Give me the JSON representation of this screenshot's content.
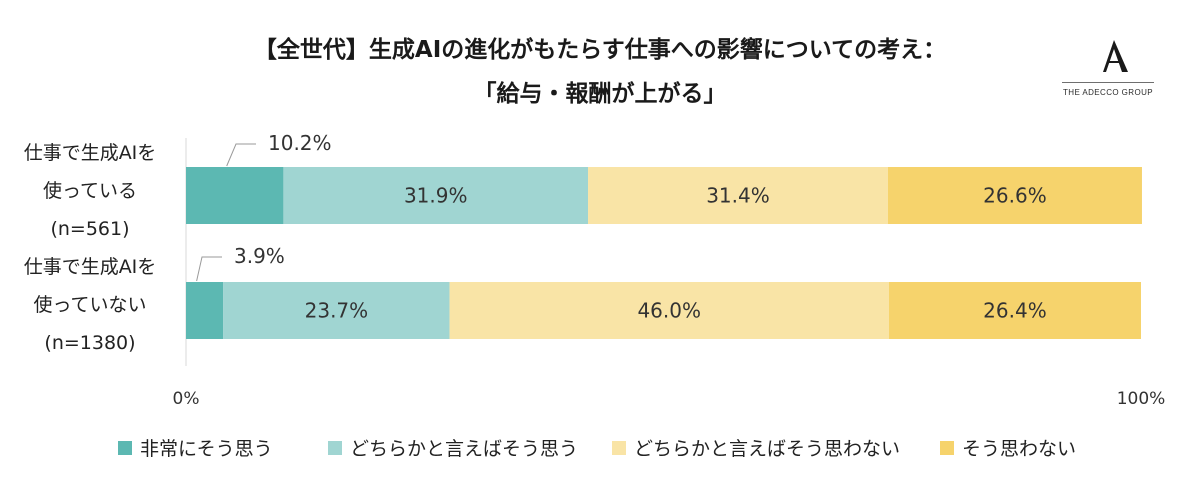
{
  "title": {
    "line1": "【全世代】生成AIの進化がもたらす仕事への影響についての考え：",
    "line2": "「給与・報酬が上がる」"
  },
  "logo": {
    "text": "THE ADECCO GROUP",
    "mark": "A"
  },
  "chart_data": {
    "type": "bar",
    "orientation": "horizontal",
    "stacked": true,
    "categories": [
      [
        "仕事で生成AIを",
        "使っている",
        "(n=561)"
      ],
      [
        "仕事で生成AIを",
        "使っていない",
        "(n=1380)"
      ]
    ],
    "series": [
      {
        "name": "非常にそう思う",
        "values": [
          10.2,
          3.9
        ],
        "color": "#5cb8b2"
      },
      {
        "name": "どちらかと言えばそう思う",
        "values": [
          31.9,
          23.7
        ],
        "color": "#a0d5d2"
      },
      {
        "name": "どちらかと言えばそう思わない",
        "values": [
          31.4,
          46.0
        ],
        "color": "#f9e4a6"
      },
      {
        "name": "そう思わない",
        "values": [
          26.6,
          26.4
        ],
        "color": "#f6d36c"
      }
    ],
    "data_labels": [
      [
        "10.2%",
        "31.9%",
        "31.4%",
        "26.6%"
      ],
      [
        "3.9%",
        "23.7%",
        "46.0%",
        "26.4%"
      ]
    ],
    "axis_ticks": [
      "0%",
      "100%"
    ],
    "xlim": [
      0,
      100
    ],
    "grid": false,
    "legend_position": "bottom"
  }
}
